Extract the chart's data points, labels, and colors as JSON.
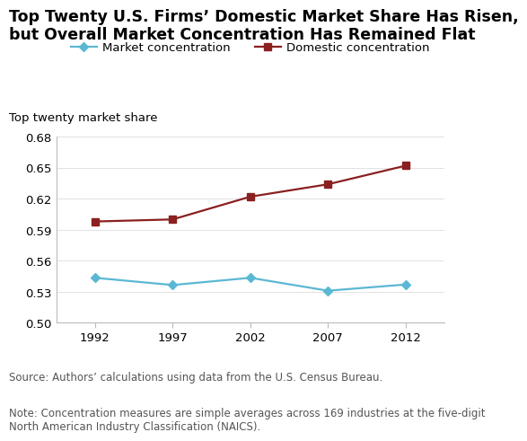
{
  "title_line1": "Top Twenty U.S. Firms’ Domestic Market Share Has Risen,",
  "title_line2": "but Overall Market Concentration Has Remained Flat",
  "ylabel": "Top twenty market share",
  "years": [
    1992,
    1997,
    2002,
    2007,
    2012
  ],
  "market_concentration": [
    0.5435,
    0.5365,
    0.5435,
    0.531,
    0.537
  ],
  "domestic_concentration": [
    0.598,
    0.6,
    0.622,
    0.634,
    0.652
  ],
  "ylim": [
    0.5,
    0.68
  ],
  "yticks": [
    0.5,
    0.53,
    0.56,
    0.59,
    0.62,
    0.65,
    0.68
  ],
  "market_color": "#5BB8D4",
  "domestic_color": "#8B2020",
  "source_text": "Source: Authors’ calculations using data from the U.S. Census Bureau.",
  "note_text": "Note: Concentration measures are simple averages across 169 industries at the five-digit\nNorth American Industry Classification (NAICS).",
  "legend_market": "Market concentration",
  "legend_domestic": "Domestic concentration",
  "title_fontsize": 12.5,
  "label_fontsize": 9.5,
  "tick_fontsize": 9.5,
  "footnote_fontsize": 8.5
}
